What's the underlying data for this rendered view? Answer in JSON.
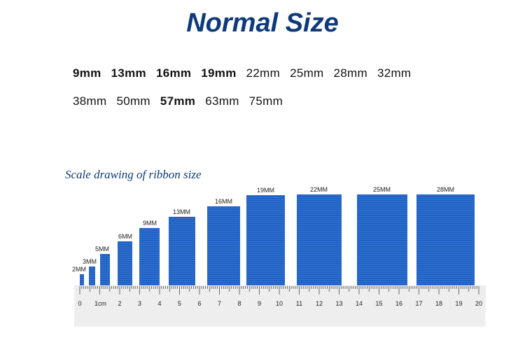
{
  "title": "Normal Size",
  "sizes_row1": [
    {
      "text": "9mm",
      "bold": true
    },
    {
      "text": "13mm",
      "bold": true
    },
    {
      "text": "16mm",
      "bold": true
    },
    {
      "text": "19mm",
      "bold": true
    },
    {
      "text": "22mm",
      "bold": false
    },
    {
      "text": "25mm",
      "bold": false
    },
    {
      "text": "28mm",
      "bold": false
    },
    {
      "text": "32mm",
      "bold": false
    }
  ],
  "sizes_row2": [
    {
      "text": "38mm",
      "bold": false
    },
    {
      "text": "50mm",
      "bold": false
    },
    {
      "text": "57mm",
      "bold": true
    },
    {
      "text": "63mm",
      "bold": false
    },
    {
      "text": "75mm",
      "bold": false
    }
  ],
  "scale_caption": "Scale drawing of ribbon size",
  "ribbons": [
    {
      "label": "2MM",
      "width_mm": 2
    },
    {
      "label": "3MM",
      "width_mm": 3
    },
    {
      "label": "5MM",
      "width_mm": 5
    },
    {
      "label": "6MM",
      "width_mm": 6
    },
    {
      "label": "9MM",
      "width_mm": 9
    },
    {
      "label": "13MM",
      "width_mm": 13
    },
    {
      "label": "16MM",
      "width_mm": 16
    },
    {
      "label": "19MM",
      "width_mm": 19
    },
    {
      "label": "22MM",
      "width_mm": 22
    },
    {
      "label": "25MM",
      "width_mm": 25
    },
    {
      "label": "28MM",
      "width_mm": 28
    }
  ],
  "ruler": {
    "labels": [
      "0",
      "",
      "1cm",
      "2",
      "3",
      "4",
      "5",
      "6",
      "7",
      "8",
      "9",
      "10",
      "11",
      "12",
      "13",
      "14",
      "15",
      "16",
      "17",
      "18",
      "19",
      "20"
    ],
    "max_cm": 20
  },
  "colors": {
    "title": "#0e3a7a",
    "ribbon": "#1f62c6",
    "caption": "#0e3a7a"
  }
}
